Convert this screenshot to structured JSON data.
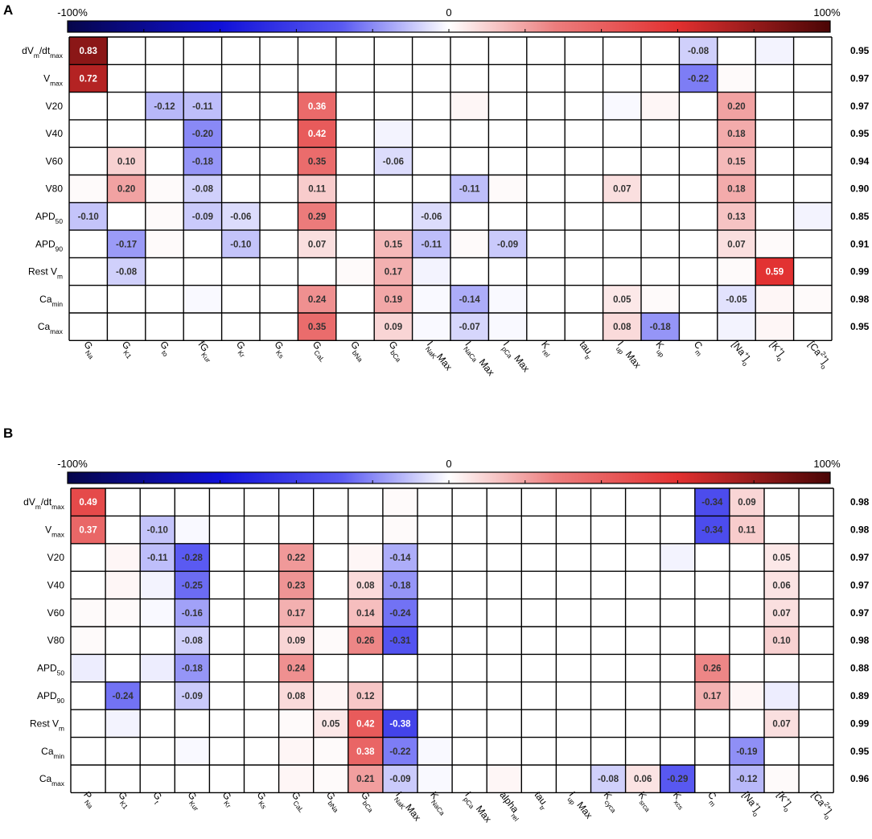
{
  "chart_data": [
    {
      "panel": "A",
      "type": "heatmap",
      "colorbar": {
        "min_label": "-100%",
        "mid_label": "0",
        "max_label": "100%",
        "range": [
          -1,
          1
        ]
      },
      "rows": [
        {
          "label": "dVm/dtmax",
          "base": "dV",
          "sub": "m",
          "mid": "/dt",
          "sub2": "max"
        },
        {
          "label": "Vmax",
          "base": "V",
          "sub": "max"
        },
        {
          "label": "V20",
          "base": "V20"
        },
        {
          "label": "V40",
          "base": "V40"
        },
        {
          "label": "V60",
          "base": "V60"
        },
        {
          "label": "V80",
          "base": "V80"
        },
        {
          "label": "APD50",
          "base": "APD",
          "sub": "50"
        },
        {
          "label": "APD90",
          "base": "APD",
          "sub": "90"
        },
        {
          "label": "Rest Vm",
          "base": "Rest V",
          "sub": "m"
        },
        {
          "label": "Camin",
          "base": "Ca",
          "sub": "min"
        },
        {
          "label": "Camax",
          "base": "Ca",
          "sub": "max"
        }
      ],
      "columns": [
        {
          "label": "GNa",
          "base": "G",
          "sub": "Na"
        },
        {
          "label": "GK1",
          "base": "G",
          "sub": "K1"
        },
        {
          "label": "Gto",
          "base": "G",
          "sub": "to"
        },
        {
          "label": "fGKur",
          "base": "fG",
          "sub": "Kur"
        },
        {
          "label": "GKr",
          "base": "G",
          "sub": "Kr"
        },
        {
          "label": "GKs",
          "base": "G",
          "sub": "Ks"
        },
        {
          "label": "GCaL",
          "base": "G",
          "sub": "CaL"
        },
        {
          "label": "GbNa",
          "base": "G",
          "sub": "bNa"
        },
        {
          "label": "GbCa",
          "base": "G",
          "sub": "bCa"
        },
        {
          "label": "INaK Max",
          "base": "I",
          "sub": "NaK",
          "post": "Max"
        },
        {
          "label": "INaCa Max",
          "base": "I",
          "sub": "NaCa",
          "post": " Max"
        },
        {
          "label": "IpCa Max",
          "base": "I",
          "sub": "pCa",
          "post": " Max"
        },
        {
          "label": "Krel",
          "base": "K",
          "sub": "rel"
        },
        {
          "label": "tautr",
          "base": "tau",
          "sub": "tr"
        },
        {
          "label": "Iup Max",
          "base": "I",
          "sub": "up",
          "post": " Max"
        },
        {
          "label": "Kup",
          "base": "K",
          "sub": "up"
        },
        {
          "label": "Cm",
          "base": "C",
          "sub": "m"
        },
        {
          "label": "[Na+]o",
          "base": "[Na",
          "sup": "+",
          "close": "]",
          "sub": "o"
        },
        {
          "label": "[K+]o",
          "base": "[K",
          "sup": "+",
          "close": "]",
          "sub": "o"
        },
        {
          "label": "[Ca2+]o",
          "base": "[Ca",
          "sup": "2+",
          "close": "]",
          "sub": "o"
        }
      ],
      "values": [
        [
          0.83,
          0,
          0,
          0,
          0,
          0,
          0,
          0,
          0,
          0,
          0,
          0,
          0,
          0,
          0,
          0,
          -0.08,
          0,
          -0.02,
          0
        ],
        [
          0.72,
          0,
          0,
          0,
          0,
          0,
          0,
          0,
          0,
          0,
          0,
          0,
          0,
          0,
          0,
          0,
          -0.22,
          0.01,
          0,
          0
        ],
        [
          0,
          0,
          -0.12,
          -0.11,
          0,
          0,
          0.36,
          0,
          0,
          0,
          0.02,
          0,
          0,
          0,
          -0.01,
          0.02,
          0,
          0.2,
          0,
          0
        ],
        [
          0,
          0,
          0,
          -0.2,
          0,
          0,
          0.42,
          0,
          -0.02,
          0,
          0,
          0,
          0,
          0,
          0,
          0,
          0,
          0.18,
          0,
          0
        ],
        [
          0,
          0.1,
          0,
          -0.18,
          0,
          0,
          0.35,
          0,
          -0.06,
          0,
          0,
          0,
          0,
          0,
          0,
          0,
          0,
          0.15,
          0,
          0
        ],
        [
          0.01,
          0.2,
          0.01,
          -0.08,
          0,
          0,
          0.11,
          0,
          0,
          0,
          -0.11,
          0.01,
          0,
          0,
          0.07,
          0,
          0,
          0.18,
          0,
          0
        ],
        [
          -0.1,
          0,
          0.01,
          -0.09,
          -0.06,
          0,
          0.29,
          0,
          0,
          -0.06,
          0,
          0,
          0,
          0,
          0,
          0,
          0,
          0.13,
          0,
          -0.02
        ],
        [
          0,
          -0.17,
          0.01,
          0,
          -0.1,
          0,
          0.07,
          0,
          0.15,
          -0.11,
          0.01,
          -0.09,
          0,
          0,
          0,
          0,
          0,
          0.07,
          0.01,
          0
        ],
        [
          0,
          -0.08,
          0,
          0,
          0,
          0,
          0,
          0.01,
          0.17,
          -0.02,
          0,
          0,
          0,
          0,
          0,
          0,
          0,
          0.01,
          0.59,
          0
        ],
        [
          0,
          0,
          0,
          -0.01,
          0,
          0,
          0.24,
          0,
          0.19,
          -0.01,
          -0.14,
          -0.01,
          0,
          0,
          0.05,
          0.01,
          0,
          -0.05,
          0.02,
          0.01
        ],
        [
          0,
          0,
          0,
          0,
          0,
          0,
          0.35,
          0,
          0.09,
          -0.01,
          -0.07,
          -0.01,
          0,
          0,
          0.08,
          -0.18,
          0,
          -0.02,
          0.02,
          0
        ]
      ],
      "labeled": [
        [
          0,
          0
        ],
        [
          0,
          16
        ],
        [
          1,
          0
        ],
        [
          1,
          16
        ],
        [
          2,
          2
        ],
        [
          2,
          3
        ],
        [
          2,
          6
        ],
        [
          2,
          17
        ],
        [
          3,
          3
        ],
        [
          3,
          6
        ],
        [
          3,
          17
        ],
        [
          4,
          1
        ],
        [
          4,
          3
        ],
        [
          4,
          6
        ],
        [
          4,
          8
        ],
        [
          4,
          17
        ],
        [
          5,
          1
        ],
        [
          5,
          3
        ],
        [
          5,
          6
        ],
        [
          5,
          10
        ],
        [
          5,
          14
        ],
        [
          5,
          17
        ],
        [
          6,
          0
        ],
        [
          6,
          3
        ],
        [
          6,
          4
        ],
        [
          6,
          6
        ],
        [
          6,
          9
        ],
        [
          6,
          17
        ],
        [
          7,
          1
        ],
        [
          7,
          4
        ],
        [
          7,
          6
        ],
        [
          7,
          8
        ],
        [
          7,
          9
        ],
        [
          7,
          11
        ],
        [
          7,
          17
        ],
        [
          8,
          1
        ],
        [
          8,
          8
        ],
        [
          8,
          18
        ],
        [
          9,
          6
        ],
        [
          9,
          8
        ],
        [
          9,
          10
        ],
        [
          9,
          14
        ],
        [
          9,
          17
        ],
        [
          10,
          6
        ],
        [
          10,
          8
        ],
        [
          10,
          10
        ],
        [
          10,
          14
        ],
        [
          10,
          15
        ]
      ],
      "r2": [
        "0.95",
        "0.97",
        "0.97",
        "0.95",
        "0.94",
        "0.90",
        "0.85",
        "0.91",
        "0.99",
        "0.98",
        "0.95"
      ]
    },
    {
      "panel": "B",
      "type": "heatmap",
      "colorbar": {
        "min_label": "-100%",
        "mid_label": "0",
        "max_label": "100%",
        "range": [
          -1,
          1
        ]
      },
      "rows": [
        {
          "label": "dVm/dtmax",
          "base": "dV",
          "sub": "m",
          "mid": "/dt",
          "sub2": "max"
        },
        {
          "label": "Vmax",
          "base": "V",
          "sub": "max"
        },
        {
          "label": "V20",
          "base": "V20"
        },
        {
          "label": "V40",
          "base": "V40"
        },
        {
          "label": "V60",
          "base": "V60"
        },
        {
          "label": "V80",
          "base": "V80"
        },
        {
          "label": "APD50",
          "base": "APD",
          "sub": "50"
        },
        {
          "label": "APD90",
          "base": "APD",
          "sub": "90"
        },
        {
          "label": "Rest Vm",
          "base": "Rest V",
          "sub": "m"
        },
        {
          "label": "Camin",
          "base": "Ca",
          "sub": "min"
        },
        {
          "label": "Camax",
          "base": "Ca",
          "sub": "max"
        }
      ],
      "columns": [
        {
          "label": "PNa",
          "base": "P",
          "sub": "Na"
        },
        {
          "label": "GK1",
          "base": "G",
          "sub": "K1"
        },
        {
          "label": "Gt",
          "base": "G",
          "sub": "t"
        },
        {
          "label": "GKur",
          "base": "G",
          "sub": "Kur"
        },
        {
          "label": "GKr",
          "base": "G",
          "sub": "Kr"
        },
        {
          "label": "GKs",
          "base": "G",
          "sub": "Ks"
        },
        {
          "label": "GCaL",
          "base": "G",
          "sub": "CaL"
        },
        {
          "label": "GbNa",
          "base": "G",
          "sub": "bNa"
        },
        {
          "label": "GbCa",
          "base": "G",
          "sub": "bCa"
        },
        {
          "label": "INaK Max",
          "base": "I",
          "sub": "NaK",
          "post": "Max"
        },
        {
          "label": "KNaCa",
          "base": "K",
          "sub": "NaCa"
        },
        {
          "label": "IpCa Max",
          "base": "I",
          "sub": "pCa",
          "post": " Max"
        },
        {
          "label": "alpharel",
          "base": "alpha",
          "sub": "rel"
        },
        {
          "label": "tautr",
          "base": "tau",
          "sub": "tr"
        },
        {
          "label": "Iup Max",
          "base": "I",
          "sub": "up",
          "post": " Max"
        },
        {
          "label": "Kcyca",
          "base": "K",
          "sub": "cyca"
        },
        {
          "label": "Ksrca",
          "base": "K",
          "sub": "srca"
        },
        {
          "label": "Kxcs",
          "base": "K",
          "sub": "xcs"
        },
        {
          "label": "Cm",
          "base": "C",
          "sub": "m"
        },
        {
          "label": "[Na+]o",
          "base": "[Na",
          "sup": "+",
          "close": "]",
          "sub": "o"
        },
        {
          "label": "[K+]o",
          "base": "[K",
          "sup": "+",
          "close": "]",
          "sub": "o"
        },
        {
          "label": "[Ca2+]o",
          "base": "[Ca",
          "sup": "2+",
          "close": "]",
          "sub": "o"
        }
      ],
      "values": [
        [
          0.49,
          0,
          0,
          0,
          0,
          0,
          0,
          0,
          0,
          0.01,
          0,
          0,
          0,
          0,
          0,
          0,
          0,
          0,
          -0.34,
          0.09,
          0,
          0
        ],
        [
          0.37,
          0,
          -0.1,
          -0.01,
          0,
          0,
          0,
          0,
          0,
          0.01,
          0,
          0,
          0,
          0,
          0,
          0,
          0,
          0,
          -0.34,
          0.11,
          0,
          0
        ],
        [
          0,
          0.02,
          -0.11,
          -0.28,
          0,
          0,
          0.22,
          0,
          0.02,
          -0.14,
          0,
          0,
          0,
          0,
          0,
          0,
          0,
          -0.02,
          0,
          0,
          0.05,
          0
        ],
        [
          0,
          0.02,
          -0.02,
          -0.25,
          0,
          0,
          0.23,
          0,
          0.08,
          -0.18,
          0,
          0,
          0,
          0,
          0,
          0,
          0,
          0,
          0,
          0,
          0.06,
          0
        ],
        [
          0.01,
          0.01,
          -0.01,
          -0.16,
          0,
          0,
          0.17,
          0,
          0.14,
          -0.24,
          0,
          0,
          0,
          0,
          0,
          0,
          0,
          0,
          0,
          0,
          0.07,
          0
        ],
        [
          0.01,
          0,
          0,
          -0.08,
          0,
          0,
          0.09,
          0.01,
          0.26,
          -0.31,
          0,
          0,
          0,
          0,
          0,
          0,
          0,
          0,
          0,
          0,
          0.1,
          0
        ],
        [
          -0.03,
          0,
          -0.03,
          -0.18,
          0,
          0,
          0.24,
          0,
          0,
          0,
          0,
          0,
          0,
          0,
          0,
          0,
          0,
          0,
          0.26,
          0,
          0,
          0
        ],
        [
          0,
          -0.24,
          0,
          -0.09,
          0,
          0,
          0.08,
          0.02,
          0.12,
          0,
          0,
          0,
          0,
          0,
          0,
          0,
          0,
          0,
          0.17,
          0.02,
          -0.03,
          0
        ],
        [
          0,
          -0.02,
          0,
          0,
          0,
          0,
          0.01,
          0.05,
          0.42,
          -0.38,
          0,
          0,
          0,
          0,
          0,
          0,
          0,
          0,
          0,
          0,
          0.07,
          0
        ],
        [
          0,
          0,
          0,
          -0.01,
          0,
          0,
          0.02,
          0.01,
          0.38,
          -0.22,
          -0.01,
          0,
          0,
          0,
          0,
          0,
          0,
          0,
          0,
          -0.19,
          0,
          0
        ],
        [
          0,
          0,
          0,
          0,
          0,
          0,
          0.02,
          0.01,
          0.21,
          -0.09,
          -0.01,
          0,
          0.02,
          0,
          0,
          -0.08,
          0.06,
          -0.29,
          0,
          -0.12,
          0.01,
          0
        ]
      ],
      "labeled": [
        [
          0,
          0
        ],
        [
          0,
          18
        ],
        [
          0,
          19
        ],
        [
          1,
          0
        ],
        [
          1,
          2
        ],
        [
          1,
          18
        ],
        [
          1,
          19
        ],
        [
          2,
          2
        ],
        [
          2,
          3
        ],
        [
          2,
          6
        ],
        [
          2,
          9
        ],
        [
          2,
          20
        ],
        [
          3,
          3
        ],
        [
          3,
          6
        ],
        [
          3,
          8
        ],
        [
          3,
          9
        ],
        [
          3,
          20
        ],
        [
          4,
          3
        ],
        [
          4,
          6
        ],
        [
          4,
          8
        ],
        [
          4,
          9
        ],
        [
          4,
          20
        ],
        [
          5,
          3
        ],
        [
          5,
          6
        ],
        [
          5,
          8
        ],
        [
          5,
          9
        ],
        [
          5,
          20
        ],
        [
          6,
          3
        ],
        [
          6,
          6
        ],
        [
          6,
          18
        ],
        [
          7,
          1
        ],
        [
          7,
          3
        ],
        [
          7,
          6
        ],
        [
          7,
          8
        ],
        [
          7,
          18
        ],
        [
          8,
          7
        ],
        [
          8,
          8
        ],
        [
          8,
          9
        ],
        [
          8,
          20
        ],
        [
          9,
          8
        ],
        [
          9,
          9
        ],
        [
          9,
          19
        ],
        [
          10,
          8
        ],
        [
          10,
          9
        ],
        [
          10,
          15
        ],
        [
          10,
          16
        ],
        [
          10,
          17
        ],
        [
          10,
          19
        ]
      ],
      "r2": [
        "0.98",
        "0.98",
        "0.97",
        "0.97",
        "0.97",
        "0.98",
        "0.88",
        "0.89",
        "0.99",
        "0.95",
        "0.96"
      ]
    }
  ],
  "panel_letters": [
    "A",
    "B"
  ]
}
